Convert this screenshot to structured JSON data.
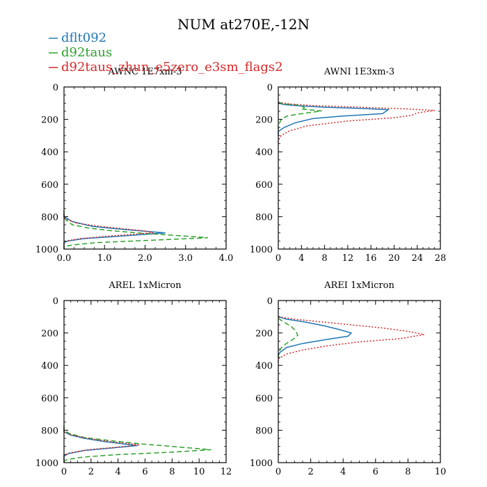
{
  "figure_title": "NUM at270E,-12N",
  "legend": [
    {
      "label": "dflt092",
      "color": "#1f77b4",
      "style": "solid"
    },
    {
      "label": "d92taus",
      "color": "#2ca02c",
      "style": "dashed"
    },
    {
      "label": "d92taus_zhun_e5zero_e3sm_flags2",
      "color": "#d62728",
      "style": "dotted"
    }
  ],
  "chart_data": [
    {
      "type": "line",
      "title": "AWNC  1E7xm-3",
      "xlim": [
        0,
        4.0
      ],
      "xticks": [
        0.0,
        1.0,
        2.0,
        3.0,
        4.0
      ],
      "xticklabels": [
        "0.0",
        "1.0",
        "2.0",
        "3.0",
        "4.0"
      ],
      "ylim": [
        1000,
        0
      ],
      "yticks": [
        0,
        200,
        400,
        600,
        800,
        1000
      ],
      "series": [
        {
          "name": "dflt092",
          "points": [
            [
              0,
              780
            ],
            [
              0,
              800
            ],
            [
              0.2,
              830
            ],
            [
              0.7,
              860
            ],
            [
              1.3,
              875
            ],
            [
              1.9,
              888
            ],
            [
              2.5,
              900
            ],
            [
              1.4,
              920
            ],
            [
              0.5,
              935
            ],
            [
              0.1,
              950
            ],
            [
              0,
              960
            ],
            [
              0,
              1000
            ]
          ]
        },
        {
          "name": "d92taus",
          "points": [
            [
              0,
              760
            ],
            [
              0,
              800
            ],
            [
              0.05,
              820
            ],
            [
              0.2,
              850
            ],
            [
              0.6,
              870
            ],
            [
              1.1,
              885
            ],
            [
              1.8,
              900
            ],
            [
              3.0,
              920
            ],
            [
              3.55,
              930
            ],
            [
              2.2,
              945
            ],
            [
              0.8,
              960
            ],
            [
              0.2,
              975
            ],
            [
              0,
              985
            ],
            [
              0,
              1000
            ]
          ]
        },
        {
          "name": "d92taus_zhun_e5zero_e3sm_flags2",
          "points": [
            [
              0,
              790
            ],
            [
              0,
              810
            ],
            [
              0.3,
              840
            ],
            [
              0.9,
              860
            ],
            [
              1.5,
              875
            ],
            [
              2.1,
              892
            ],
            [
              2.2,
              900
            ],
            [
              1.2,
              918
            ],
            [
              0.4,
              935
            ],
            [
              0.05,
              950
            ],
            [
              0,
              960
            ],
            [
              0,
              1000
            ]
          ]
        }
      ]
    },
    {
      "type": "line",
      "title": "AWNI  1E3xm-3",
      "xlim": [
        0,
        28
      ],
      "xticks": [
        0,
        4,
        8,
        12,
        16,
        20,
        24,
        28
      ],
      "xticklabels": [
        "0",
        "4",
        "8",
        "12",
        "16",
        "20",
        "24",
        "28"
      ],
      "ylim": [
        1000,
        0
      ],
      "yticks": [
        0,
        200,
        400,
        600,
        800,
        1000
      ],
      "series": [
        {
          "name": "dflt092",
          "points": [
            [
              0,
              100
            ],
            [
              1,
              108
            ],
            [
              3,
              115
            ],
            [
              8,
              125
            ],
            [
              14,
              132
            ],
            [
              19,
              140
            ],
            [
              18,
              165
            ],
            [
              11,
              180
            ],
            [
              6,
              195
            ],
            [
              3,
              220
            ],
            [
              1,
              250
            ],
            [
              0,
              275
            ],
            [
              0,
              300
            ]
          ]
        },
        {
          "name": "d92taus",
          "points": [
            [
              0,
              95
            ],
            [
              1,
              105
            ],
            [
              3,
              110
            ],
            [
              4,
              118
            ],
            [
              4.5,
              128
            ],
            [
              4,
              136
            ],
            [
              7.5,
              148
            ],
            [
              5,
              160
            ],
            [
              3,
              170
            ],
            [
              1.5,
              180
            ],
            [
              0.5,
              200
            ],
            [
              0,
              240
            ],
            [
              0,
              260
            ]
          ]
        },
        {
          "name": "d92taus_zhun_e5zero_e3sm_flags2",
          "points": [
            [
              0,
              95
            ],
            [
              2,
              105
            ],
            [
              6,
              115
            ],
            [
              14,
              125
            ],
            [
              22,
              135
            ],
            [
              27,
              145
            ],
            [
              24,
              160
            ],
            [
              23,
              175
            ],
            [
              20,
              190
            ],
            [
              12,
              210
            ],
            [
              5,
              240
            ],
            [
              2,
              270
            ],
            [
              0.5,
              300
            ],
            [
              0,
              330
            ],
            [
              0,
              350
            ]
          ]
        }
      ]
    },
    {
      "type": "line",
      "title": "AREL  1xMicron",
      "xlim": [
        0,
        12
      ],
      "xticks": [
        0,
        2,
        4,
        6,
        8,
        10,
        12
      ],
      "xticklabels": [
        "0",
        "2",
        "4",
        "6",
        "8",
        "10",
        "12"
      ],
      "ylim": [
        1000,
        0
      ],
      "yticks": [
        0,
        200,
        400,
        600,
        800,
        1000
      ],
      "series": [
        {
          "name": "dflt092",
          "points": [
            [
              0,
              790
            ],
            [
              0,
              810
            ],
            [
              0.5,
              830
            ],
            [
              1.5,
              850
            ],
            [
              3.0,
              870
            ],
            [
              4.5,
              885
            ],
            [
              5.4,
              895
            ],
            [
              3.5,
              910
            ],
            [
              1.5,
              925
            ],
            [
              0.3,
              945
            ],
            [
              0,
              960
            ],
            [
              0,
              1000
            ]
          ]
        },
        {
          "name": "d92taus",
          "points": [
            [
              0,
              770
            ],
            [
              0,
              800
            ],
            [
              0.4,
              820
            ],
            [
              1.5,
              845
            ],
            [
              3.5,
              865
            ],
            [
              5.8,
              885
            ],
            [
              8,
              900
            ],
            [
              10.9,
              920
            ],
            [
              8,
              935
            ],
            [
              4,
              950
            ],
            [
              1.5,
              965
            ],
            [
              0.3,
              980
            ],
            [
              0,
              990
            ],
            [
              0,
              1000
            ]
          ]
        },
        {
          "name": "d92taus_zhun_e5zero_e3sm_flags2",
          "points": [
            [
              0,
              790
            ],
            [
              0,
              810
            ],
            [
              0.6,
              830
            ],
            [
              1.8,
              850
            ],
            [
              3.2,
              868
            ],
            [
              4.7,
              882
            ],
            [
              5.6,
              890
            ],
            [
              3.8,
              905
            ],
            [
              1.8,
              920
            ],
            [
              0.4,
              940
            ],
            [
              0,
              955
            ],
            [
              0,
              1000
            ]
          ]
        }
      ]
    },
    {
      "type": "line",
      "title": "AREI  1xMicron",
      "xlim": [
        0,
        10
      ],
      "xticks": [
        0,
        2,
        4,
        6,
        8,
        10
      ],
      "xticklabels": [
        "0",
        "2",
        "4",
        "6",
        "8",
        "10"
      ],
      "ylim": [
        1000,
        0
      ],
      "yticks": [
        0,
        200,
        400,
        600,
        800,
        1000
      ],
      "series": [
        {
          "name": "dflt092",
          "points": [
            [
              0,
              100
            ],
            [
              0.5,
              115
            ],
            [
              1.5,
              130
            ],
            [
              2.8,
              155
            ],
            [
              3.8,
              180
            ],
            [
              4.5,
              200
            ],
            [
              4.3,
              220
            ],
            [
              3.0,
              240
            ],
            [
              1.5,
              265
            ],
            [
              0.5,
              290
            ],
            [
              0.1,
              320
            ],
            [
              0,
              340
            ]
          ]
        },
        {
          "name": "d92taus",
          "points": [
            [
              0,
              110
            ],
            [
              0.3,
              130
            ],
            [
              0.8,
              160
            ],
            [
              1.1,
              190
            ],
            [
              1.2,
              215
            ],
            [
              0.9,
              240
            ],
            [
              0.5,
              265
            ],
            [
              0.2,
              290
            ],
            [
              0,
              320
            ],
            [
              0,
              350
            ]
          ]
        },
        {
          "name": "d92taus_zhun_e5zero_e3sm_flags2",
          "points": [
            [
              0,
              100
            ],
            [
              1,
              115
            ],
            [
              2.5,
              130
            ],
            [
              4.5,
              150
            ],
            [
              6.5,
              170
            ],
            [
              8,
              190
            ],
            [
              9,
              210
            ],
            [
              7.5,
              235
            ],
            [
              5,
              255
            ],
            [
              3,
              280
            ],
            [
              1.5,
              305
            ],
            [
              0.5,
              330
            ],
            [
              0,
              360
            ],
            [
              0,
              380
            ]
          ]
        }
      ]
    }
  ]
}
